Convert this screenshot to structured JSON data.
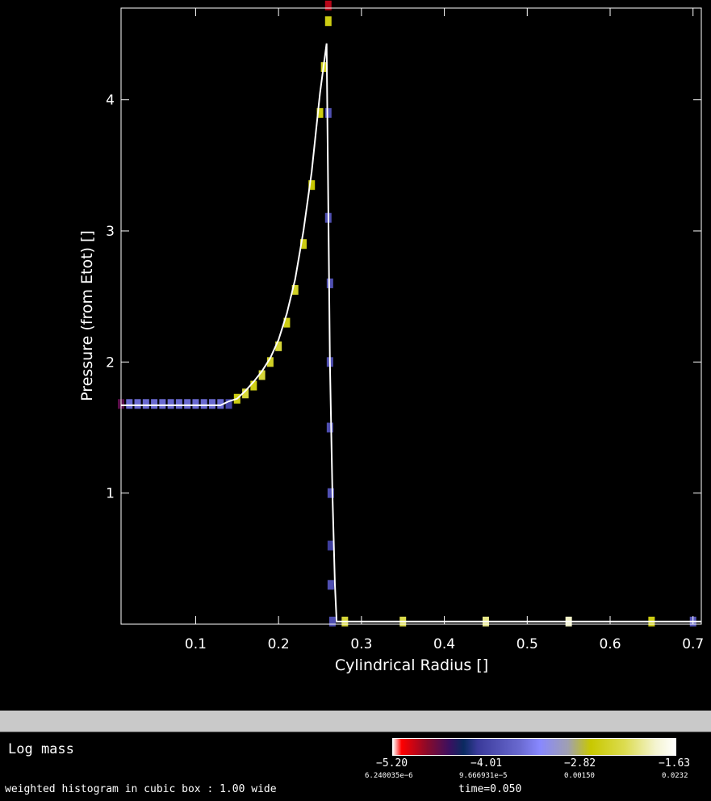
{
  "chart_data": {
    "type": "heatmap",
    "xlabel": "Cylindrical Radius []",
    "ylabel": "Pressure (from Etot) []",
    "xlim": [
      0.01,
      0.71
    ],
    "ylim": [
      0.0,
      4.7
    ],
    "x_ticks": [
      0.1,
      0.2,
      0.3,
      0.4,
      0.5,
      0.6,
      0.7
    ],
    "x_tick_labels": [
      "0.1",
      "0.2",
      "0.3",
      "0.4",
      "0.5",
      "0.6",
      "0.7"
    ],
    "y_ticks": [
      1,
      2,
      3,
      4
    ],
    "y_tick_labels": [
      "1",
      "2",
      "3",
      "4"
    ],
    "grid": false,
    "profile_line": {
      "color": "#ffffff",
      "x": [
        0.01,
        0.13,
        0.14,
        0.15,
        0.16,
        0.17,
        0.18,
        0.19,
        0.2,
        0.21,
        0.22,
        0.23,
        0.24,
        0.25,
        0.258,
        0.262,
        0.265,
        0.268,
        0.27,
        0.71
      ],
      "y": [
        1.67,
        1.67,
        1.7,
        1.72,
        1.78,
        1.85,
        1.93,
        2.03,
        2.17,
        2.37,
        2.63,
        3.0,
        3.45,
        4.05,
        4.43,
        2.0,
        1.0,
        0.3,
        0.02,
        0.02
      ]
    },
    "histogram_cells": [
      {
        "x": 0.01,
        "y": 1.68,
        "v": -4.6
      },
      {
        "x": 0.02,
        "y": 1.68,
        "v": -3.6
      },
      {
        "x": 0.03,
        "y": 1.68,
        "v": -3.6
      },
      {
        "x": 0.04,
        "y": 1.68,
        "v": -3.6
      },
      {
        "x": 0.05,
        "y": 1.68,
        "v": -3.6
      },
      {
        "x": 0.06,
        "y": 1.68,
        "v": -3.6
      },
      {
        "x": 0.07,
        "y": 1.68,
        "v": -3.6
      },
      {
        "x": 0.08,
        "y": 1.68,
        "v": -3.6
      },
      {
        "x": 0.09,
        "y": 1.68,
        "v": -3.6
      },
      {
        "x": 0.1,
        "y": 1.68,
        "v": -3.6
      },
      {
        "x": 0.11,
        "y": 1.68,
        "v": -3.6
      },
      {
        "x": 0.12,
        "y": 1.68,
        "v": -3.6
      },
      {
        "x": 0.13,
        "y": 1.68,
        "v": -3.6
      },
      {
        "x": 0.14,
        "y": 1.68,
        "v": -4.0
      },
      {
        "x": 0.15,
        "y": 1.72,
        "v": -2.6
      },
      {
        "x": 0.16,
        "y": 1.76,
        "v": -2.4
      },
      {
        "x": 0.17,
        "y": 1.82,
        "v": -2.6
      },
      {
        "x": 0.18,
        "y": 1.9,
        "v": -2.4
      },
      {
        "x": 0.19,
        "y": 2.0,
        "v": -2.5
      },
      {
        "x": 0.2,
        "y": 2.12,
        "v": -2.4
      },
      {
        "x": 0.21,
        "y": 2.3,
        "v": -2.6
      },
      {
        "x": 0.22,
        "y": 2.55,
        "v": -2.5
      },
      {
        "x": 0.23,
        "y": 2.9,
        "v": -2.6
      },
      {
        "x": 0.24,
        "y": 3.35,
        "v": -2.7
      },
      {
        "x": 0.25,
        "y": 3.9,
        "v": -2.6
      },
      {
        "x": 0.255,
        "y": 4.25,
        "v": -2.5
      },
      {
        "x": 0.26,
        "y": 4.6,
        "v": -2.6
      },
      {
        "x": 0.26,
        "y": 4.72,
        "v": -4.9
      },
      {
        "x": 0.26,
        "y": 3.9,
        "v": -3.9
      },
      {
        "x": 0.26,
        "y": 3.1,
        "v": -3.9
      },
      {
        "x": 0.262,
        "y": 2.6,
        "v": -3.9
      },
      {
        "x": 0.262,
        "y": 2.0,
        "v": -3.9
      },
      {
        "x": 0.262,
        "y": 1.5,
        "v": -3.9
      },
      {
        "x": 0.263,
        "y": 1.0,
        "v": -3.9
      },
      {
        "x": 0.263,
        "y": 0.6,
        "v": -4.1
      },
      {
        "x": 0.263,
        "y": 0.3,
        "v": -3.9
      },
      {
        "x": 0.265,
        "y": 0.02,
        "v": -3.9
      },
      {
        "x": 0.28,
        "y": 0.02,
        "v": -2.4
      },
      {
        "x": 0.35,
        "y": 0.02,
        "v": -2.3
      },
      {
        "x": 0.45,
        "y": 0.02,
        "v": -2.1
      },
      {
        "x": 0.55,
        "y": 0.02,
        "v": -1.9
      },
      {
        "x": 0.65,
        "y": 0.02,
        "v": -2.6
      },
      {
        "x": 0.7,
        "y": 0.02,
        "v": -3.8
      }
    ]
  },
  "footer": {
    "quantity_label": "Log mass",
    "note": "weighted histogram in cubic box : 1.00  wide",
    "time_label": "time=0.050",
    "colorbar": {
      "log_labels": [
        "−5.20",
        "−4.01",
        "−2.82",
        "−1.63"
      ],
      "linear_labels": [
        "6.240035e−6",
        "9.666931e−5",
        "0.00150",
        "0.0232"
      ],
      "log_range": [
        -5.2,
        -1.63
      ]
    }
  }
}
